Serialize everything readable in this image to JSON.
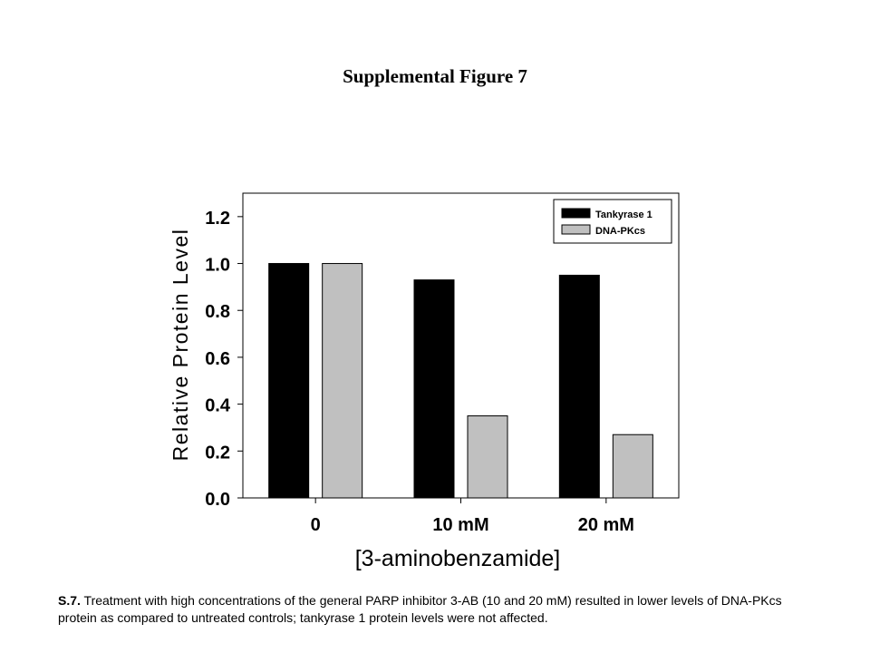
{
  "figure_title": "Supplemental Figure 7",
  "caption": {
    "label": "S.7.",
    "text": " Treatment with high concentrations of the general PARP inhibitor 3-AB (10 and 20 mM) resulted in lower levels of DNA-PKcs protein as compared to untreated controls; tankyrase 1 protein levels were not affected."
  },
  "chart_data": {
    "type": "bar",
    "title": "",
    "xlabel": "[3-aminobenzamide]",
    "ylabel": "Relative Protein Level",
    "categories": [
      "0",
      "10 mM",
      "20 mM"
    ],
    "series": [
      {
        "name": "Tankyrase 1",
        "color": "#000000",
        "values": [
          1.0,
          0.93,
          0.95
        ]
      },
      {
        "name": "DNA-PKcs",
        "color": "#c0c0c0",
        "values": [
          1.0,
          0.35,
          0.27
        ]
      }
    ],
    "ylim": [
      0,
      1.3
    ],
    "yticks": [
      "0.0",
      "0.2",
      "0.4",
      "0.6",
      "0.8",
      "1.0",
      "1.2"
    ],
    "grid": false,
    "legend_position": "top-right"
  }
}
